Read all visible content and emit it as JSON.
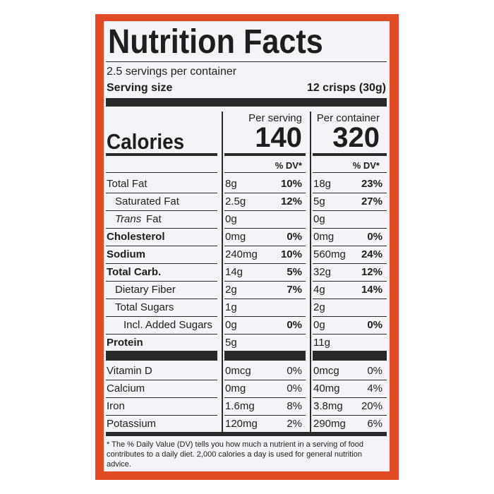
{
  "header": {
    "title": "Nutrition Facts",
    "servings": "2.5 servings per container",
    "serving_size_label": "Serving size",
    "serving_size": "12 crisps (30g)"
  },
  "columns": {
    "per_serving": "Per serving",
    "per_container": "Per container"
  },
  "calories": {
    "label": "Calories",
    "per_serving": "140",
    "per_container": "320"
  },
  "dv_headers": [
    "% DV*",
    "% DV*"
  ],
  "nutrients": [
    {
      "label": "Total Fat",
      "indent": 0,
      "bold": false,
      "serving_amount": "8g",
      "serving_dv": "10%",
      "container_amount": "18g",
      "container_dv": "23%"
    },
    {
      "label": "Saturated Fat",
      "indent": 1,
      "bold": false,
      "serving_amount": "2.5g",
      "serving_dv": "12%",
      "container_amount": "5g",
      "container_dv": "27%"
    },
    {
      "label_italic": "Trans",
      "label": "Fat",
      "indent": 1,
      "bold": false,
      "serving_amount": "0g",
      "container_amount": "0g"
    },
    {
      "label": "Cholesterol",
      "indent": 0,
      "bold": true,
      "serving_amount": "0mg",
      "serving_dv": "0%",
      "container_amount": "0mg",
      "container_dv": "0%"
    },
    {
      "label": "Sodium",
      "indent": 0,
      "bold": true,
      "serving_amount": "240mg",
      "serving_dv": "10%",
      "container_amount": "560mg",
      "container_dv": "24%"
    },
    {
      "label": "Total Carb.",
      "indent": 0,
      "bold": true,
      "serving_amount": "14g",
      "serving_dv": "5%",
      "container_amount": "32g",
      "container_dv": "12%"
    },
    {
      "label": "Dietary Fiber",
      "indent": 1,
      "bold": false,
      "serving_amount": "2g",
      "serving_dv": "7%",
      "container_amount": "4g",
      "container_dv": "14%"
    },
    {
      "label": "Total Sugars",
      "indent": 1,
      "bold": false,
      "serving_amount": "1g",
      "container_amount": "2g"
    },
    {
      "label": "Incl. Added Sugars",
      "indent": 2,
      "bold": false,
      "serving_amount": "0g",
      "serving_dv": "0%",
      "container_amount": "0g",
      "container_dv": "0%"
    },
    {
      "label": "Protein",
      "indent": 0,
      "bold": true,
      "serving_amount": "5g",
      "container_amount": "11g"
    }
  ],
  "vitamins": [
    {
      "label": "Vitamin D",
      "serving_amount": "0mcg",
      "serving_dv": "0%",
      "container_amount": "0mcg",
      "container_dv": "0%"
    },
    {
      "label": "Calcium",
      "serving_amount": "0mg",
      "serving_dv": "0%",
      "container_amount": "40mg",
      "container_dv": "4%"
    },
    {
      "label": "Iron",
      "serving_amount": "1.6mg",
      "serving_dv": "8%",
      "container_amount": "3.8mg",
      "container_dv": "20%"
    },
    {
      "label": "Potassium",
      "serving_amount": "120mg",
      "serving_dv": "2%",
      "container_amount": "290mg",
      "container_dv": "6%"
    }
  ],
  "footnote": "* The % Daily Value (DV) tells you how much a nutrient in a serving of food contributes to a daily diet. 2,000 calories a day is used for general nutrition advice."
}
